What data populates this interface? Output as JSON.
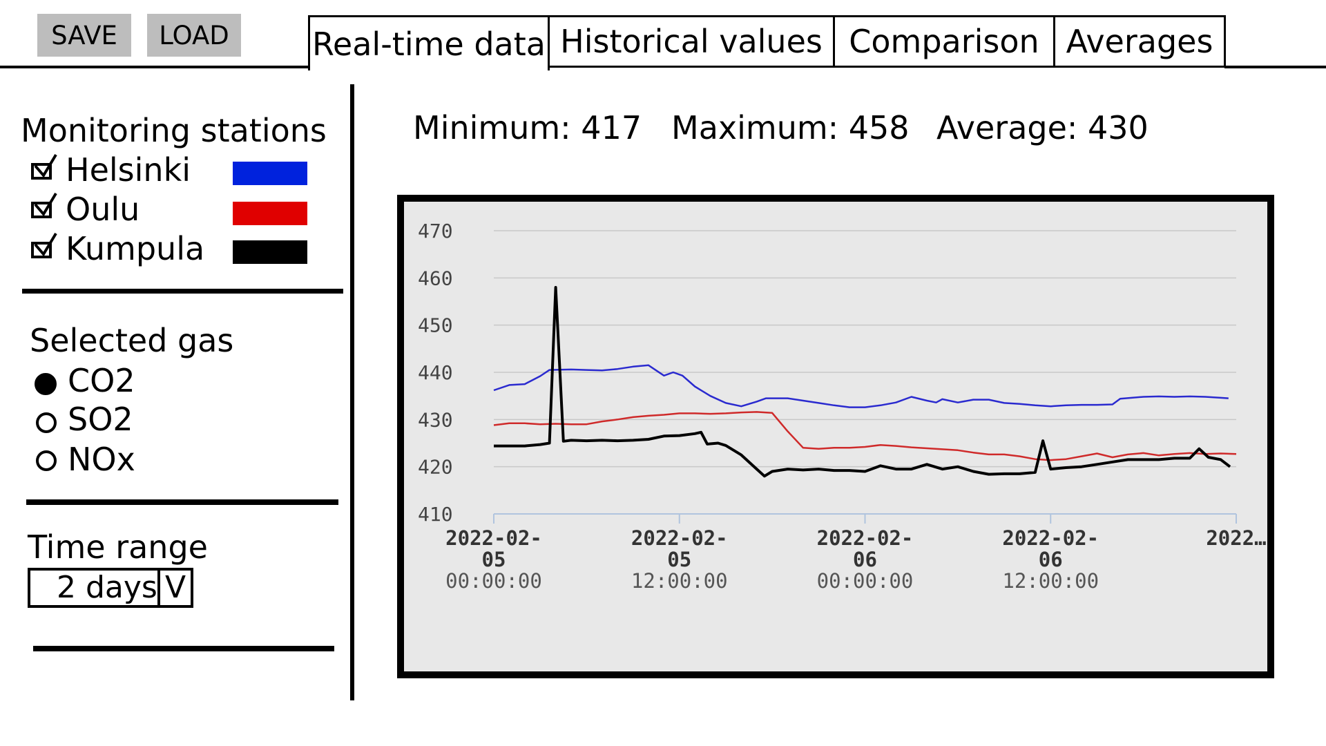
{
  "toolbar": {
    "save_label": "SAVE",
    "load_label": "LOAD"
  },
  "tabs": [
    {
      "label": "Real-time data",
      "active": true
    },
    {
      "label": "Historical values",
      "active": false
    },
    {
      "label": "Comparison",
      "active": false
    },
    {
      "label": "Averages",
      "active": false
    }
  ],
  "sidebar": {
    "stations_title": "Monitoring stations",
    "stations": [
      {
        "name": "Helsinki",
        "checked": true,
        "color": "#0022dd"
      },
      {
        "name": "Oulu",
        "checked": true,
        "color": "#e00000"
      },
      {
        "name": "Kumpula",
        "checked": true,
        "color": "#000000"
      }
    ],
    "gas_title": "Selected gas",
    "gases": [
      {
        "name": "CO2",
        "selected": true
      },
      {
        "name": "SO2",
        "selected": false
      },
      {
        "name": "NOx",
        "selected": false
      }
    ],
    "time_title": "Time range",
    "time_value": "2 days",
    "time_dropdown_glyph": "V"
  },
  "stats": {
    "minimum": "Minimum: 417",
    "maximum": "Maximum: 458",
    "average": "Average: 430"
  },
  "chart_data": {
    "type": "line",
    "ylim": [
      410,
      470
    ],
    "yticks": [
      410,
      420,
      430,
      440,
      450,
      460,
      470
    ],
    "xlim": [
      0,
      48
    ],
    "xticks": [
      {
        "x": 0,
        "lines": [
          "2022-02-",
          "05",
          "00:00:00"
        ]
      },
      {
        "x": 12,
        "lines": [
          "2022-02-",
          "05",
          "12:00:00"
        ]
      },
      {
        "x": 24,
        "lines": [
          "2022-02-",
          "06",
          "00:00:00"
        ]
      },
      {
        "x": 36,
        "lines": [
          "2022-02-",
          "06",
          "12:00:00"
        ]
      },
      {
        "x": 48,
        "lines": [
          "2022…",
          "",
          ""
        ]
      }
    ],
    "grid": true,
    "series": [
      {
        "name": "Helsinki",
        "color": "#2a2acf",
        "points": [
          [
            0,
            436.2
          ],
          [
            1,
            437.3
          ],
          [
            2,
            437.5
          ],
          [
            3,
            439.2
          ],
          [
            3.6,
            440.5
          ],
          [
            5,
            440.6
          ],
          [
            6,
            440.5
          ],
          [
            7,
            440.4
          ],
          [
            8,
            440.7
          ],
          [
            9,
            441.2
          ],
          [
            10,
            441.5
          ],
          [
            11,
            439.3
          ],
          [
            11.6,
            440
          ],
          [
            12.2,
            439.3
          ],
          [
            13,
            437
          ],
          [
            14,
            435
          ],
          [
            15,
            433.5
          ],
          [
            16,
            432.8
          ],
          [
            17,
            433.8
          ],
          [
            17.6,
            434.5
          ],
          [
            19,
            434.5
          ],
          [
            20,
            434
          ],
          [
            21,
            433.5
          ],
          [
            22,
            433
          ],
          [
            23,
            432.6
          ],
          [
            24,
            432.6
          ],
          [
            25,
            433
          ],
          [
            26,
            433.6
          ],
          [
            27,
            434.8
          ],
          [
            28,
            434
          ],
          [
            28.6,
            433.6
          ],
          [
            29,
            434.3
          ],
          [
            30,
            433.6
          ],
          [
            31,
            434.2
          ],
          [
            32,
            434.2
          ],
          [
            33,
            433.5
          ],
          [
            34,
            433.3
          ],
          [
            35,
            433
          ],
          [
            36,
            432.8
          ],
          [
            37,
            433
          ],
          [
            38,
            433.1
          ],
          [
            39,
            433.1
          ],
          [
            40,
            433.2
          ],
          [
            40.5,
            434.4
          ],
          [
            42,
            434.8
          ],
          [
            43,
            434.9
          ],
          [
            44,
            434.8
          ],
          [
            45,
            434.9
          ],
          [
            46,
            434.8
          ],
          [
            47,
            434.6
          ],
          [
            47.5,
            434.5
          ]
        ]
      },
      {
        "name": "Oulu",
        "color": "#cf2a2a",
        "points": [
          [
            0,
            428.8
          ],
          [
            1,
            429.2
          ],
          [
            2,
            429.2
          ],
          [
            3,
            429
          ],
          [
            4,
            429.1
          ],
          [
            5,
            429
          ],
          [
            6,
            429
          ],
          [
            7,
            429.6
          ],
          [
            8,
            430
          ],
          [
            9,
            430.5
          ],
          [
            10,
            430.8
          ],
          [
            11,
            431
          ],
          [
            12,
            431.3
          ],
          [
            13,
            431.3
          ],
          [
            14,
            431.2
          ],
          [
            15,
            431.3
          ],
          [
            16,
            431.5
          ],
          [
            17,
            431.6
          ],
          [
            18,
            431.4
          ],
          [
            19,
            427.5
          ],
          [
            20,
            424
          ],
          [
            21,
            423.8
          ],
          [
            22,
            424
          ],
          [
            23,
            424
          ],
          [
            24,
            424.2
          ],
          [
            25,
            424.6
          ],
          [
            26,
            424.4
          ],
          [
            27,
            424.1
          ],
          [
            28,
            423.9
          ],
          [
            29,
            423.7
          ],
          [
            30,
            423.5
          ],
          [
            31,
            423
          ],
          [
            32,
            422.6
          ],
          [
            33,
            422.6
          ],
          [
            34,
            422.2
          ],
          [
            35,
            421.6
          ],
          [
            36,
            421.4
          ],
          [
            37,
            421.6
          ],
          [
            38,
            422.2
          ],
          [
            39,
            422.8
          ],
          [
            40,
            422
          ],
          [
            41,
            422.6
          ],
          [
            42,
            422.9
          ],
          [
            43,
            422.4
          ],
          [
            44,
            422.7
          ],
          [
            45,
            422.9
          ],
          [
            46,
            422.7
          ],
          [
            47,
            422.8
          ],
          [
            48,
            422.7
          ]
        ]
      },
      {
        "name": "Kumpula",
        "color": "#000000",
        "points": [
          [
            0,
            424.4
          ],
          [
            1,
            424.4
          ],
          [
            2,
            424.4
          ],
          [
            3,
            424.7
          ],
          [
            3.6,
            425
          ],
          [
            4,
            458
          ],
          [
            4.5,
            425.4
          ],
          [
            5,
            425.6
          ],
          [
            6,
            425.5
          ],
          [
            7,
            425.6
          ],
          [
            8,
            425.5
          ],
          [
            9,
            425.6
          ],
          [
            10,
            425.8
          ],
          [
            11,
            426.5
          ],
          [
            12,
            426.6
          ],
          [
            13,
            427
          ],
          [
            13.4,
            427.3
          ],
          [
            13.8,
            424.8
          ],
          [
            14.5,
            425
          ],
          [
            15,
            424.5
          ],
          [
            16,
            422.5
          ],
          [
            17,
            419.5
          ],
          [
            17.5,
            418
          ],
          [
            18,
            419
          ],
          [
            19,
            419.5
          ],
          [
            20,
            419.3
          ],
          [
            21,
            419.5
          ],
          [
            22,
            419.2
          ],
          [
            23,
            419.2
          ],
          [
            24,
            419
          ],
          [
            25,
            420.2
          ],
          [
            26,
            419.5
          ],
          [
            27,
            419.5
          ],
          [
            28,
            420.5
          ],
          [
            29,
            419.5
          ],
          [
            30,
            420
          ],
          [
            31,
            419
          ],
          [
            32,
            418.4
          ],
          [
            33,
            418.5
          ],
          [
            34,
            418.5
          ],
          [
            35,
            418.8
          ],
          [
            35.5,
            425.5
          ],
          [
            36,
            419.5
          ],
          [
            37,
            419.8
          ],
          [
            38,
            420
          ],
          [
            39,
            420.5
          ],
          [
            40,
            421
          ],
          [
            41,
            421.5
          ],
          [
            42,
            421.5
          ],
          [
            43,
            421.5
          ],
          [
            44,
            421.8
          ],
          [
            45,
            421.8
          ],
          [
            45.6,
            423.8
          ],
          [
            46.2,
            422
          ],
          [
            47,
            421.5
          ],
          [
            47.6,
            420
          ]
        ]
      }
    ]
  }
}
